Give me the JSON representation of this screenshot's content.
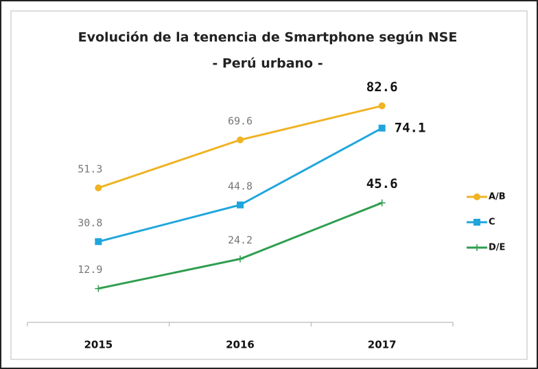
{
  "chart_data": {
    "type": "line",
    "title": "Evolución de la tenencia de Smartphone según NSE",
    "subtitle": "- Perú urbano -",
    "categories": [
      "2015",
      "2016",
      "2017"
    ],
    "series": [
      {
        "name": "A/B",
        "color": "#f0b323",
        "marker": "circle",
        "values": [
          51.3,
          69.6,
          82.6
        ]
      },
      {
        "name": "C",
        "color": "#1fa6dc",
        "marker": "square",
        "values": [
          30.8,
          44.8,
          74.1
        ]
      },
      {
        "name": "D/E",
        "color": "#2e9e4f",
        "marker": "plus",
        "values": [
          12.9,
          24.2,
          45.6
        ]
      }
    ],
    "ylim": [
      0,
      90
    ]
  }
}
